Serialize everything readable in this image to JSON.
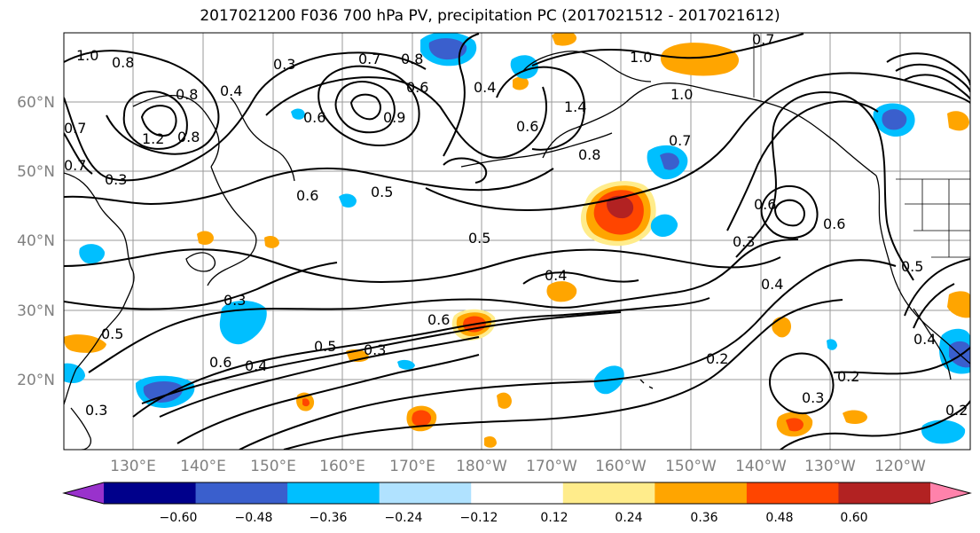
{
  "title": "2017021200 F036 700 hPa PV, precipitation PC (2017021512 - 2017021612)",
  "latitude_labels": [
    "60°N",
    "50°N",
    "40°N",
    "30°N",
    "20°N"
  ],
  "longitude_labels": [
    "130°E",
    "140°E",
    "150°E",
    "160°E",
    "170°E",
    "180°W",
    "170°W",
    "160°W",
    "150°W",
    "140°W",
    "130°W",
    "120°W"
  ],
  "colorbar": {
    "ticks": [
      "−0.60",
      "−0.48",
      "−0.36",
      "−0.24",
      "−0.12",
      "0.12",
      "0.24",
      "0.36",
      "0.48",
      "0.60"
    ],
    "colors": [
      "#9932CC",
      "#00008B",
      "#3A5FCD",
      "#00BFFF",
      "#B0E2FF",
      "#FFFFFF",
      "#FFEC8B",
      "#FFA500",
      "#FF4500",
      "#B22222",
      "#FF82AB"
    ]
  },
  "contour_labels": [
    "1.0",
    "0.8",
    "0.3",
    "0.7",
    "0.8",
    "0.6",
    "1.0",
    "0.4",
    "0.7",
    "0.8",
    "1.2",
    "0.8",
    "0.6",
    "0.9",
    "0.4",
    "0.6",
    "0.8",
    "1.4",
    "1.0",
    "0.7",
    "0.3",
    "0.7",
    "0.6",
    "0.5",
    "0.5",
    "0.5",
    "0.3",
    "0.4",
    "0.6",
    "0.5",
    "0.4",
    "0.3",
    "0.6",
    "0.4",
    "0.3",
    "0.2",
    "0.2",
    "0.3",
    "0.5",
    "0.6",
    "0.2",
    "0.3",
    "0.7",
    "0.6",
    "0.4"
  ]
}
